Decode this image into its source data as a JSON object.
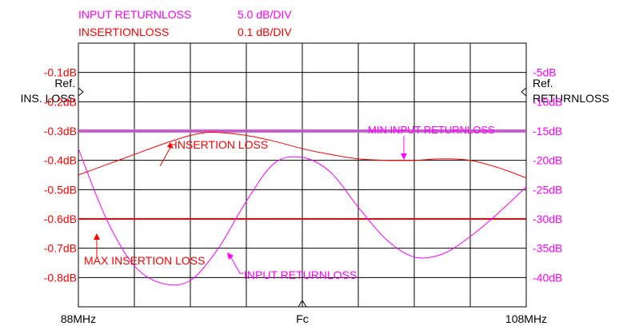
{
  "colors": {
    "insertion_loss": "#ff0000",
    "return_loss": "#ff00ff",
    "grid": "#000000",
    "band_line": "#9a9aa0"
  },
  "header": {
    "line1_label": "INPUT RETURNLOSS",
    "line1_scale": "5.0 dB/DIV",
    "line2_label": "INSERTIONLOSS",
    "line2_scale": "0.1 dB/DIV"
  },
  "chart_data": {
    "type": "line",
    "grid": true,
    "x_divisions": 8,
    "y_divisions": 9,
    "x_ticks": [
      "88MHz",
      "Fc",
      "108MHz"
    ],
    "left_axis": {
      "ref_label": "Ref.",
      "title": "INS. LOSS",
      "ticks": [
        "-0.1dB",
        "-0.2dB",
        "-0.3dB",
        "-0.4dB",
        "-0.5dB",
        "-0.6dB",
        "-0.7dB",
        "-0.8dB"
      ],
      "ylim": [
        -0.9,
        0.0
      ]
    },
    "right_axis": {
      "ref_label": "Ref.",
      "title": "RETURNLOSS",
      "ticks": [
        "-5dB",
        "-10dB",
        "-15dB",
        "-20dB",
        "-25dB",
        "-30dB",
        "-35dB",
        "-40dB"
      ],
      "ylim": [
        -45,
        0
      ]
    },
    "limits": [
      {
        "axis": "left",
        "value": -0.6,
        "label": "MAX INSERTION LOSS",
        "series": "insertion_loss"
      },
      {
        "axis": "right",
        "value": -15,
        "label": "MIN INPUT RETURNLOSS",
        "series": "return_loss"
      }
    ],
    "series": [
      {
        "name": "INSERTION LOSS",
        "key": "insertion_loss",
        "axis": "left",
        "x": [
          0,
          0.5,
          1.0,
          1.5,
          2.0,
          2.3,
          2.5,
          3.0,
          3.5,
          4.0,
          4.5,
          5.0,
          5.5,
          6.0,
          6.5,
          7.0,
          7.5,
          8.0
        ],
        "y": [
          -0.45,
          -0.415,
          -0.38,
          -0.345,
          -0.315,
          -0.305,
          -0.305,
          -0.315,
          -0.335,
          -0.36,
          -0.38,
          -0.395,
          -0.4,
          -0.4,
          -0.395,
          -0.4,
          -0.425,
          -0.46
        ]
      },
      {
        "name": "INPUT RETURNLOSS",
        "key": "return_loss",
        "axis": "right",
        "x": [
          0,
          0.5,
          1.0,
          1.5,
          2.0,
          2.5,
          3.0,
          3.5,
          4.0,
          4.5,
          5.0,
          5.5,
          6.0,
          6.5,
          7.0,
          7.5,
          8.0
        ],
        "y": [
          -18,
          -30,
          -38,
          -41,
          -40.5,
          -35,
          -27,
          -20.5,
          -19.5,
          -22,
          -28,
          -33.5,
          -36.5,
          -36,
          -33,
          -29,
          -24.5
        ]
      }
    ]
  }
}
